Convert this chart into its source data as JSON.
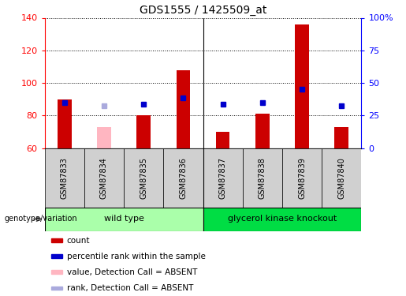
{
  "title": "GDS1555 / 1425509_at",
  "samples": [
    "GSM87833",
    "GSM87834",
    "GSM87835",
    "GSM87836",
    "GSM87837",
    "GSM87838",
    "GSM87839",
    "GSM87840"
  ],
  "count_values": [
    90,
    null,
    80,
    108,
    70,
    81,
    136,
    73
  ],
  "count_absent_values": [
    null,
    73,
    null,
    null,
    null,
    null,
    null,
    null
  ],
  "percentile_values": [
    88,
    null,
    87,
    91,
    87,
    88,
    96,
    86
  ],
  "percentile_absent_values": [
    null,
    86,
    null,
    null,
    null,
    null,
    null,
    null
  ],
  "ylim_left": [
    60,
    140
  ],
  "ylim_right": [
    0,
    100
  ],
  "yticks_left": [
    60,
    80,
    100,
    120,
    140
  ],
  "yticks_right": [
    0,
    25,
    50,
    75,
    100
  ],
  "bar_color_present": "#cc0000",
  "bar_color_absent": "#ffb6c1",
  "dot_color_present": "#0000cc",
  "dot_color_absent": "#aaaadd",
  "plot_bg_color": "#ffffff",
  "sample_bg_color": "#d0d0d0",
  "groups": [
    {
      "label": "wild type",
      "start": 0,
      "end": 4,
      "color": "#aaffaa"
    },
    {
      "label": "glycerol kinase knockout",
      "start": 4,
      "end": 8,
      "color": "#00dd44"
    }
  ],
  "group_label": "genotype/variation",
  "legend_items": [
    {
      "label": "count",
      "color": "#cc0000"
    },
    {
      "label": "percentile rank within the sample",
      "color": "#0000cc"
    },
    {
      "label": "value, Detection Call = ABSENT",
      "color": "#ffb6c1"
    },
    {
      "label": "rank, Detection Call = ABSENT",
      "color": "#aaaadd"
    }
  ]
}
